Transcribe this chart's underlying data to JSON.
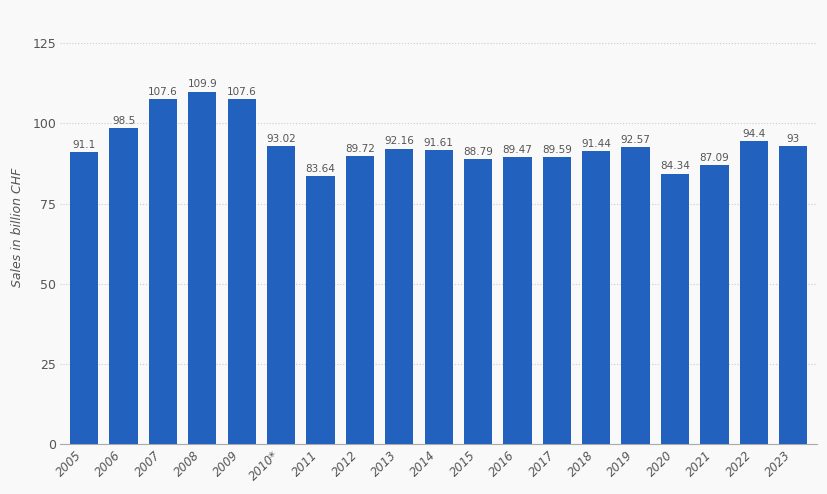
{
  "years": [
    "2005",
    "2006",
    "2007",
    "2008",
    "2009",
    "2010*",
    "2011",
    "2012",
    "2013",
    "2014",
    "2015",
    "2016",
    "2017",
    "2018",
    "2019",
    "2020",
    "2021",
    "2022",
    "2023"
  ],
  "values": [
    91.1,
    98.5,
    107.6,
    109.9,
    107.6,
    93.02,
    83.64,
    89.72,
    92.16,
    91.61,
    88.79,
    89.47,
    89.59,
    91.44,
    92.57,
    84.34,
    87.09,
    94.4,
    93.0
  ],
  "bar_color": "#2361be",
  "background_color": "#f9f9f9",
  "plot_bg_color": "#f9f9f9",
  "grid_color": "#cccccc",
  "ylabel": "Sales in billion CHF",
  "ylim": [
    0,
    135
  ],
  "yticks": [
    0,
    25,
    50,
    75,
    100,
    125
  ],
  "label_fontsize": 7.5,
  "axis_label_fontsize": 9,
  "xtick_fontsize": 8.5,
  "ytick_fontsize": 9,
  "bar_width": 0.72
}
